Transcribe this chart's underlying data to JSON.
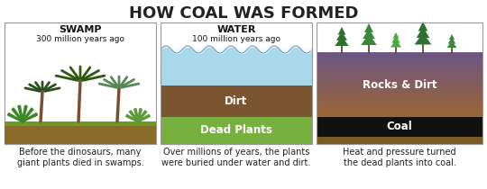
{
  "title": "HOW COAL WAS FORMED",
  "title_fontsize": 13,
  "panels": {
    "p1": {
      "header": "SWAMP",
      "subheader": "300 million years ago",
      "caption": "Before the dinosaurs, many\ngiant plants died in swamps.",
      "ground_color": "#8B6B2A",
      "grass_color": "#6a9a20"
    },
    "p2": {
      "header": "WATER",
      "subheader": "100 million years ago",
      "caption": "Over millions of years, the plants\nwere buried under water and dirt.",
      "water_color_top": "#b8dff0",
      "water_color_bot": "#7ab8d8",
      "dirt_color": "#7a5530",
      "dirt_label": "Dirt",
      "plants_color": "#78b040",
      "plants_label": "Dead Plants"
    },
    "p3": {
      "caption": "Heat and pressure turned\nthe dead plants into coal.",
      "rocks_color_top": "#9B6533",
      "rocks_color_bottom": "#6B5585",
      "rocks_label": "Rocks & Dirt",
      "coal_color": "#111111",
      "coal_label": "Coal",
      "base_color": "#7a5a22",
      "tree_colors": [
        "#2d7030",
        "#3a8838",
        "#4aaa40",
        "#2d7030",
        "#3a8838"
      ]
    }
  },
  "border_color": "#999999",
  "text_color": "#222222",
  "caption_fontsize": 7,
  "header_fontsize": 8,
  "subheader_fontsize": 6.5,
  "label_fontsize": 8.5
}
